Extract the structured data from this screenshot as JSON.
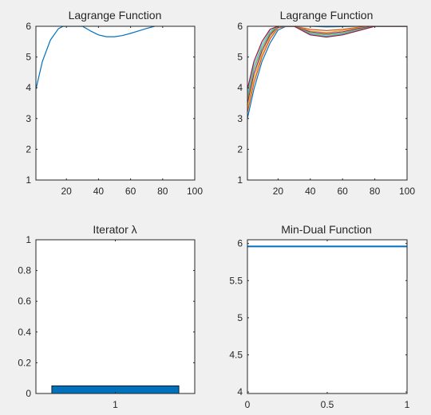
{
  "chart_data": [
    {
      "type": "line",
      "title": "Lagrange Function",
      "xlim": [
        1,
        100
      ],
      "ylim": [
        1,
        6
      ],
      "xticks": [
        20,
        40,
        60,
        80,
        100
      ],
      "yticks": [
        1,
        2,
        3,
        4,
        5,
        6
      ],
      "grid": false,
      "series": [
        {
          "color": "#0072BD",
          "x": [
            1,
            5,
            10,
            15,
            18,
            20,
            30,
            35,
            40,
            45,
            50,
            55,
            60,
            65,
            70,
            75
          ],
          "y": [
            3.95,
            4.85,
            5.55,
            5.92,
            6.0,
            6.0,
            6.0,
            5.85,
            5.72,
            5.66,
            5.66,
            5.7,
            5.77,
            5.85,
            5.93,
            6.0
          ]
        }
      ]
    },
    {
      "type": "line",
      "title": "Lagrange Function",
      "xlim": [
        1,
        100
      ],
      "ylim": [
        1,
        6
      ],
      "xticks": [
        20,
        40,
        60,
        80,
        100
      ],
      "yticks": [
        1,
        2,
        3,
        4,
        5,
        6
      ],
      "grid": false,
      "series": [
        {
          "color": "#0072BD",
          "x": [
            1,
            5,
            10,
            15,
            20,
            25,
            30,
            40,
            50,
            60,
            70,
            80,
            90,
            100
          ],
          "y": [
            3.0,
            3.95,
            4.85,
            5.45,
            5.88,
            6.0,
            6.0,
            6.0,
            5.98,
            5.99,
            6.0,
            6.0,
            6.0,
            6.0
          ]
        },
        {
          "color": "#D95319",
          "x": [
            1,
            5,
            10,
            15,
            20,
            25,
            30,
            40,
            50,
            60,
            70,
            80,
            90,
            100
          ],
          "y": [
            3.2,
            4.15,
            5.0,
            5.58,
            5.95,
            6.0,
            6.0,
            5.9,
            5.86,
            5.9,
            5.97,
            6.0,
            6.0,
            6.0
          ]
        },
        {
          "color": "#EDB120",
          "x": [
            1,
            5,
            10,
            15,
            20,
            25,
            30,
            40,
            50,
            60,
            70,
            80,
            90,
            100
          ],
          "y": [
            3.35,
            4.3,
            5.1,
            5.65,
            6.0,
            6.0,
            6.0,
            5.85,
            5.8,
            5.86,
            5.95,
            6.0,
            6.0,
            6.0
          ]
        },
        {
          "color": "#7E2F8E",
          "x": [
            1,
            5,
            10,
            15,
            20,
            25,
            30,
            40,
            50,
            60,
            70,
            80,
            90,
            100
          ],
          "y": [
            3.5,
            4.45,
            5.2,
            5.72,
            6.0,
            6.0,
            6.0,
            5.82,
            5.76,
            5.82,
            5.93,
            6.0,
            6.0,
            6.0
          ]
        },
        {
          "color": "#77AC30",
          "x": [
            1,
            5,
            10,
            15,
            20,
            25,
            30,
            40,
            50,
            60,
            70,
            80,
            90,
            100
          ],
          "y": [
            3.65,
            4.6,
            5.3,
            5.78,
            6.0,
            6.0,
            6.0,
            5.78,
            5.72,
            5.78,
            5.9,
            6.0,
            6.0,
            6.0
          ]
        },
        {
          "color": "#4DBEEE",
          "x": [
            1,
            5,
            10,
            15,
            20,
            25,
            30,
            40,
            50,
            60,
            70,
            80,
            90,
            100
          ],
          "y": [
            3.8,
            4.72,
            5.4,
            5.84,
            6.0,
            6.0,
            6.0,
            5.75,
            5.68,
            5.75,
            5.88,
            6.0,
            6.0,
            6.0
          ]
        },
        {
          "color": "#A2142F",
          "x": [
            1,
            5,
            10,
            15,
            20,
            25,
            30,
            40,
            50,
            60,
            70,
            80,
            90,
            100
          ],
          "y": [
            3.95,
            4.85,
            5.5,
            5.9,
            6.0,
            6.0,
            6.0,
            5.72,
            5.65,
            5.72,
            5.86,
            6.0,
            6.0,
            6.0
          ]
        }
      ]
    },
    {
      "type": "bar",
      "title": "Iterator λ",
      "categories": [
        "1"
      ],
      "values": [
        0.05
      ],
      "color": "#0072BD",
      "xlim": [
        0.5,
        1.5
      ],
      "ylim": [
        0,
        1
      ],
      "yticks": [
        0,
        0.2,
        0.4,
        0.6,
        0.8,
        1
      ],
      "grid": false
    },
    {
      "type": "line",
      "title": "Min-Dual Function",
      "xlim": [
        0,
        1
      ],
      "ylim": [
        3.98,
        6.05
      ],
      "xticks": [
        0,
        0.5,
        1
      ],
      "yticks": [
        4,
        4.5,
        5,
        5.5,
        6
      ],
      "grid": false,
      "series": [
        {
          "color": "#0072BD",
          "x": [
            0,
            1
          ],
          "y": [
            5.96,
            5.96
          ]
        }
      ]
    }
  ]
}
